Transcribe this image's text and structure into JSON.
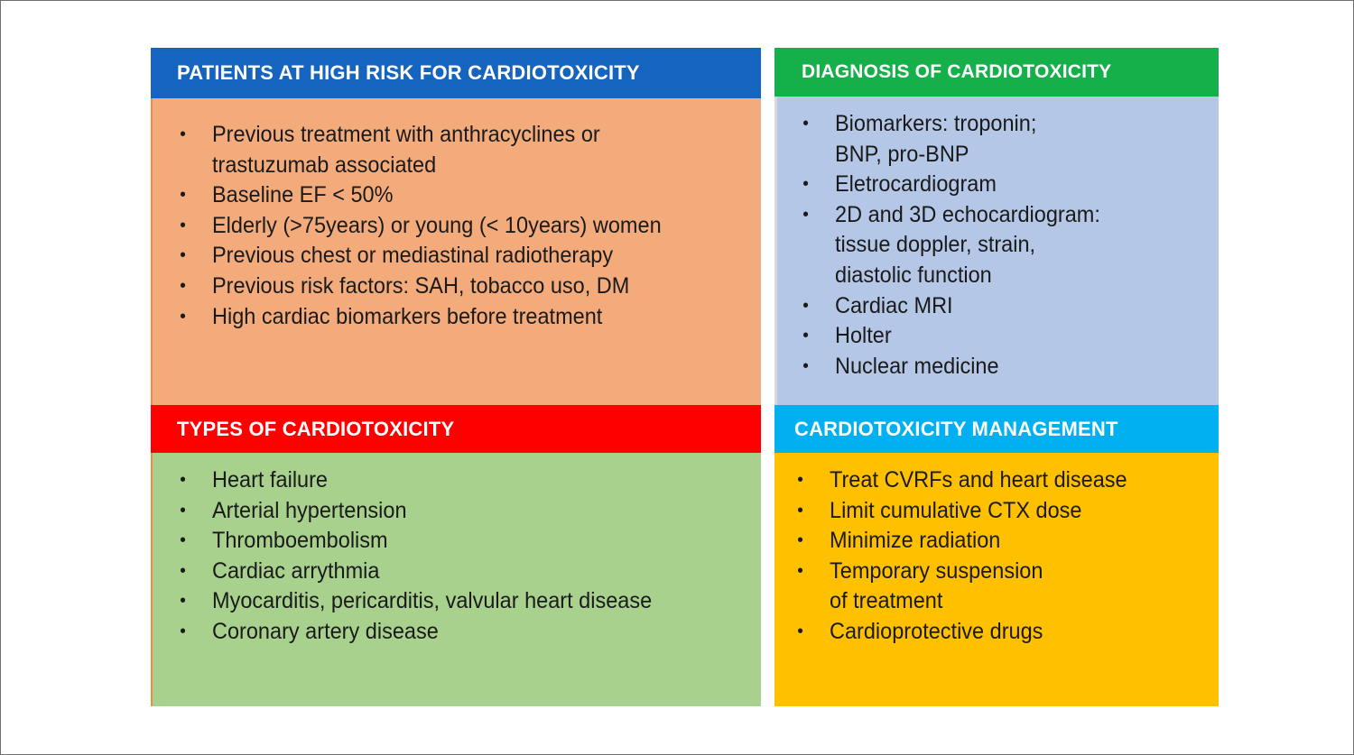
{
  "panels": {
    "risk": {
      "title": "PATIENTS AT HIGH RISK FOR CARDIOTOXICITY",
      "color": "#1565c0",
      "body_color": "#f4ab7b",
      "items": [
        "Previous treatment with anthracyclines or",
        "trastuzumab associated",
        "Baseline EF < 50%",
        "Elderly (>75years) or young (< 10years) women",
        "Previous chest or mediastinal radiotherapy",
        "Previous risk factors: SAH, tobacco uso, DM",
        "High cardiac biomarkers before treatment"
      ]
    },
    "diagnosis": {
      "title": "DIAGNOSIS OF CARDIOTOXICITY",
      "color": "#15b04a",
      "body_color": "#b4c7e6",
      "items": [
        "Biomarkers: troponin;",
        "BNP, pro-BNP",
        "Eletrocardiogram",
        "2D and 3D echocardiogram:",
        "tissue doppler, strain,",
        "diastolic function",
        "Cardiac MRI",
        "Holter",
        "Nuclear medicine"
      ]
    },
    "types": {
      "title": "TYPES OF CARDIOTOXICITY",
      "color": "#ff0000",
      "body_color": "#a9d18e",
      "items": [
        "Heart failure",
        "Arterial hypertension",
        "Thromboembolism",
        "Cardiac arrythmia",
        "Myocarditis, pericarditis, valvular heart disease",
        "Coronary artery disease"
      ]
    },
    "management": {
      "title": "CARDIOTOXICITY MANAGEMENT",
      "color": "#00b0f0",
      "body_color": "#ffc000",
      "items": [
        "Treat CVRFs and heart disease",
        "Limit cumulative CTX dose",
        "Minimize radiation",
        "Temporary suspension",
        "of treatment",
        "Cardioprotective drugs"
      ]
    }
  },
  "bullet_symbol": "•"
}
